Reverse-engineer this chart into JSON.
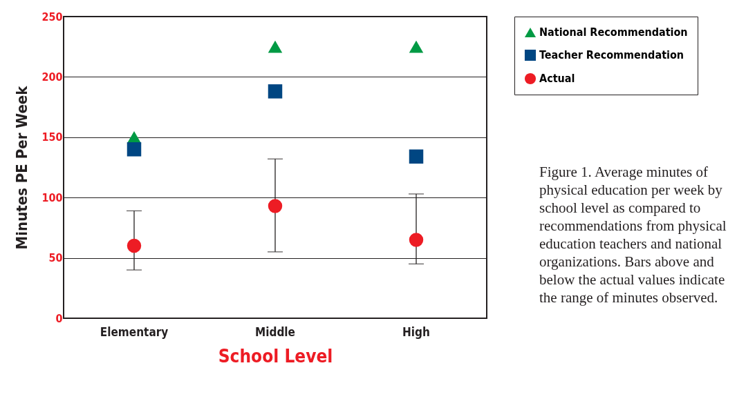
{
  "chart_data": {
    "type": "scatter",
    "categories": [
      "Elementary",
      "Middle",
      "High"
    ],
    "xlabel": "School Level",
    "ylabel": "Minutes PE Per Week",
    "ylim": [
      0,
      250
    ],
    "yticks": [
      0,
      50,
      100,
      150,
      200,
      250
    ],
    "grid": "y",
    "legend": "top right",
    "series": [
      {
        "name": "National Recommendation",
        "color": "#009a44",
        "marker": "triangle",
        "values": [
          150,
          225,
          225
        ]
      },
      {
        "name": "Teacher Recommendation",
        "color": "#004682",
        "marker": "square",
        "values": [
          140,
          188,
          134
        ]
      },
      {
        "name": "Actual",
        "color": "#ed1c24",
        "marker": "circle",
        "values": [
          60,
          93,
          65
        ],
        "errors": [
          [
            40,
            89
          ],
          [
            55,
            132
          ],
          [
            45,
            103
          ]
        ]
      }
    ],
    "annotations": [
      "Figure 1. Average minutes of physical education per week by school level as compared to recommendations from physical education teachers and national organizations. Bars above and below the actual values indicate the range of minutes observed."
    ]
  }
}
